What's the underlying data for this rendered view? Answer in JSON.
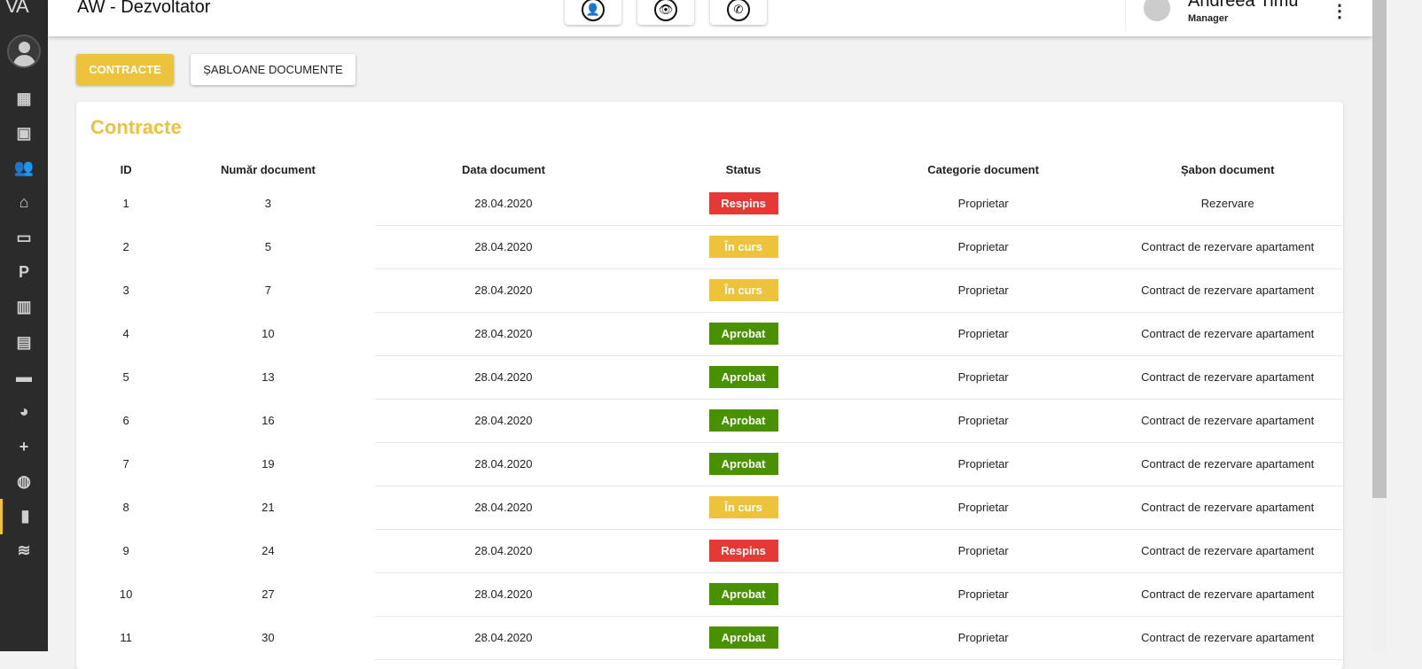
{
  "app": {
    "logo": "VA",
    "title": "AW - Dezvoltator"
  },
  "colors": {
    "accent": "#edc33c",
    "rejected": "#e53935",
    "in_progress": "#edc33c",
    "approved": "#4a9100"
  },
  "sidebar": {
    "items": [
      {
        "icon": "dashboard-icon",
        "glyph": "▦"
      },
      {
        "icon": "badge-icon",
        "glyph": "▣"
      },
      {
        "icon": "people-icon",
        "glyph": "👥"
      },
      {
        "icon": "home-icon",
        "glyph": "⌂"
      },
      {
        "icon": "screen-share-icon",
        "glyph": "▭"
      },
      {
        "icon": "parking-icon",
        "glyph": "P"
      },
      {
        "icon": "buildings-icon",
        "glyph": "▥"
      },
      {
        "icon": "clipboard-icon",
        "glyph": "▤"
      },
      {
        "icon": "credit-card-icon",
        "glyph": "▬"
      },
      {
        "icon": "pie-chart-icon",
        "glyph": "◕"
      },
      {
        "icon": "group-add-icon",
        "glyph": "+"
      },
      {
        "icon": "globe-icon",
        "glyph": "◍"
      },
      {
        "icon": "document-icon",
        "glyph": "▮",
        "active": true
      },
      {
        "icon": "rss-icon",
        "glyph": "≋"
      }
    ]
  },
  "header": {
    "actions": [
      {
        "icon": "user-add-icon",
        "glyph": "👤"
      },
      {
        "icon": "eye-icon",
        "glyph": "👁"
      },
      {
        "icon": "phone-icon",
        "glyph": "✆"
      }
    ],
    "user": {
      "name": "Andreea Timu",
      "role": "Manager"
    }
  },
  "tabs": [
    {
      "label": "CONTRACTE",
      "active": true
    },
    {
      "label": "ȘABLOANE DOCUMENTE",
      "active": false
    }
  ],
  "card": {
    "title": "Contracte",
    "columns": [
      "ID",
      "Număr document",
      "Data document",
      "Status",
      "Categorie document",
      "Șabon document"
    ],
    "rows": [
      [
        "1",
        "3",
        "28.04.2020",
        "Respins",
        "Proprietar",
        "Rezervare"
      ],
      [
        "2",
        "5",
        "28.04.2020",
        "În curs",
        "Proprietar",
        "Contract de rezervare apartament"
      ],
      [
        "3",
        "7",
        "28.04.2020",
        "În curs",
        "Proprietar",
        "Contract de rezervare apartament"
      ],
      [
        "4",
        "10",
        "28.04.2020",
        "Aprobat",
        "Proprietar",
        "Contract de rezervare apartament"
      ],
      [
        "5",
        "13",
        "28.04.2020",
        "Aprobat",
        "Proprietar",
        "Contract de rezervare apartament"
      ],
      [
        "6",
        "16",
        "28.04.2020",
        "Aprobat",
        "Proprietar",
        "Contract de rezervare apartament"
      ],
      [
        "7",
        "19",
        "28.04.2020",
        "Aprobat",
        "Proprietar",
        "Contract de rezervare apartament"
      ],
      [
        "8",
        "21",
        "28.04.2020",
        "În curs",
        "Proprietar",
        "Contract de rezervare apartament"
      ],
      [
        "9",
        "24",
        "28.04.2020",
        "Respins",
        "Proprietar",
        "Contract de rezervare apartament"
      ],
      [
        "10",
        "27",
        "28.04.2020",
        "Aprobat",
        "Proprietar",
        "Contract de rezervare apartament"
      ],
      [
        "11",
        "30",
        "28.04.2020",
        "Aprobat",
        "Proprietar",
        "Contract de rezervare apartament"
      ]
    ]
  }
}
